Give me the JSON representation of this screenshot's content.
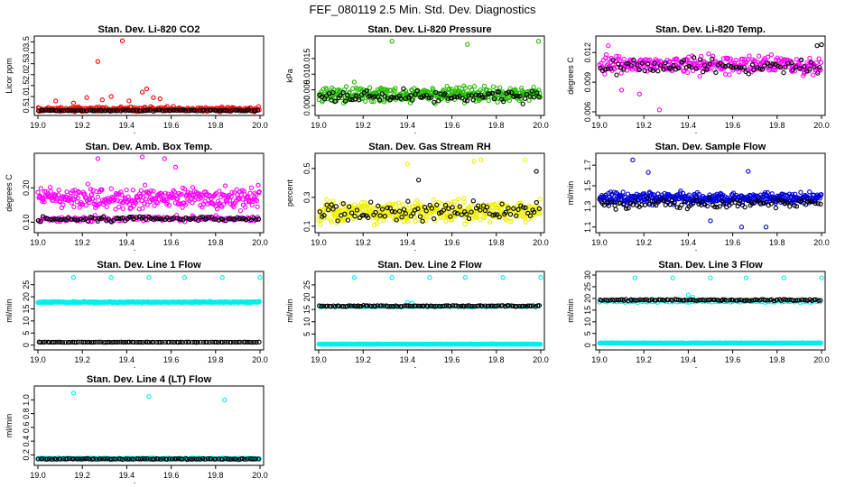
{
  "main_title": "FEF_080119  2.5 Min. Std. Dev. Diagnostics",
  "colors": {
    "black": "#000000",
    "red": "#ff0000",
    "green": "#22bb00",
    "magenta": "#ff00ff",
    "yellow": "#f0f000",
    "blue": "#0000dd",
    "cyan": "#00eeee"
  },
  "chart_data": [
    {
      "id": "co2",
      "type": "scatter",
      "title": "Stan. Dev. Li-820 CO2",
      "ylabel": "Licor ppm",
      "xlim": [
        19.0,
        20.0
      ],
      "ylim": [
        0.3,
        3.6
      ],
      "xticks": [
        "19.0",
        "19.2",
        "19.4",
        "19.6",
        "19.8",
        "20.0"
      ],
      "yticks": [
        "0.5",
        "1.0",
        "1.5",
        "2.0",
        "2.5",
        "3.0",
        "3.5"
      ],
      "series": [
        {
          "name": "primary",
          "color": "red",
          "n": 260,
          "base": 0.42,
          "noise": 0.16,
          "spikes": [
            [
              19.16,
              0.7
            ],
            [
              19.22,
              0.95
            ],
            [
              19.27,
              2.6
            ],
            [
              19.29,
              0.85
            ],
            [
              19.33,
              1.0
            ],
            [
              19.38,
              3.55
            ],
            [
              19.41,
              0.8
            ],
            [
              19.47,
              1.2
            ],
            [
              19.49,
              1.35
            ],
            [
              19.52,
              0.95
            ],
            [
              19.55,
              0.9
            ],
            [
              19.08,
              0.8
            ]
          ]
        },
        {
          "name": "secondary",
          "color": "black",
          "n": 95,
          "base": 0.36,
          "noise": 0.04,
          "spikes": []
        }
      ]
    },
    {
      "id": "pressure",
      "type": "scatter",
      "title": "Stan. Dev. Li-820 Pressure",
      "ylabel": "kPa",
      "xlim": [
        19.0,
        20.0
      ],
      "ylim": [
        -0.002,
        0.021
      ],
      "xticks": [
        "19.0",
        "19.2",
        "19.4",
        "19.6",
        "19.8",
        "20.0"
      ],
      "yticks": [
        "0.000",
        "0.005",
        "0.010",
        "0.015"
      ],
      "series": [
        {
          "name": "primary",
          "color": "green",
          "n": 340,
          "base": 0.0035,
          "noise": 0.0035,
          "spikes": [
            [
              19.33,
              0.0205
            ],
            [
              19.67,
              0.0195
            ],
            [
              19.99,
              0.0205
            ],
            [
              19.16,
              0.0075
            ]
          ]
        },
        {
          "name": "secondary",
          "color": "black",
          "n": 95,
          "base": 0.003,
          "noise": 0.003,
          "spikes": []
        }
      ]
    },
    {
      "id": "temp",
      "type": "scatter",
      "title": "Stan. Dev. Li-820 Temp.",
      "ylabel": "degrees C",
      "xlim": [
        19.0,
        20.0
      ],
      "ylim": [
        0.006,
        0.0133
      ],
      "xticks": [
        "19.0",
        "19.2",
        "19.4",
        "19.6",
        "19.8",
        "20.0"
      ],
      "yticks": [
        "0.006",
        "0.009",
        "0.012"
      ],
      "series": [
        {
          "name": "primary",
          "color": "magenta",
          "n": 300,
          "base": 0.0108,
          "noise": 0.0013,
          "spikes": [
            [
              19.27,
              0.0062
            ],
            [
              19.1,
              0.0082
            ],
            [
              19.18,
              0.0078
            ],
            [
              19.04,
              0.0127
            ]
          ]
        },
        {
          "name": "secondary",
          "color": "black",
          "n": 85,
          "base": 0.0106,
          "noise": 0.0011,
          "spikes": [
            [
              20.0,
              0.0128
            ],
            [
              19.98,
              0.0127
            ]
          ]
        }
      ]
    },
    {
      "id": "ambbox",
      "type": "scatter",
      "title": "Stan. Dev. Amb. Box Temp.",
      "ylabel": "degrees C",
      "xlim": [
        19.0,
        20.0
      ],
      "ylim": [
        0.08,
        0.29
      ],
      "xticks": [
        "19.0",
        "19.2",
        "19.4",
        "19.6",
        "19.8",
        "20.0"
      ],
      "yticks": [
        "0.10",
        "0.20"
      ],
      "series": [
        {
          "name": "primary",
          "color": "magenta",
          "n": 330,
          "base": 0.17,
          "noise": 0.045,
          "spikes": [
            [
              19.47,
              0.29
            ],
            [
              19.57,
              0.285
            ],
            [
              19.27,
              0.285
            ],
            [
              19.62,
              0.26
            ]
          ]
        },
        {
          "name": "low",
          "color": "magenta",
          "n": 140,
          "base": 0.11,
          "noise": 0.012,
          "spikes": []
        },
        {
          "name": "secondary",
          "color": "black",
          "n": 95,
          "base": 0.11,
          "noise": 0.01,
          "spikes": []
        }
      ]
    },
    {
      "id": "rh",
      "type": "scatter",
      "title": "Stan. Dev. Gas Stream RH",
      "ylabel": "percent",
      "xlim": [
        19.0,
        20.0
      ],
      "ylim": [
        0.08,
        0.58
      ],
      "xticks": [
        "19.0",
        "19.2",
        "19.4",
        "19.6",
        "19.8",
        "20.0"
      ],
      "yticks": [
        "0.1",
        "0.3",
        "0.5"
      ],
      "series": [
        {
          "name": "primary",
          "color": "yellow",
          "n": 420,
          "base": 0.2,
          "noise": 0.11,
          "spikes": [
            [
              19.73,
              0.56
            ],
            [
              19.93,
              0.56
            ],
            [
              19.4,
              0.53
            ],
            [
              19.7,
              0.55
            ]
          ]
        },
        {
          "name": "secondary",
          "color": "black",
          "n": 95,
          "base": 0.2,
          "noise": 0.09,
          "spikes": [
            [
              19.98,
              0.48
            ],
            [
              19.45,
              0.42
            ]
          ]
        }
      ]
    },
    {
      "id": "sampleflow",
      "type": "scatter",
      "title": "Stan. Dev. Sample Flow",
      "ylabel": "ml/min",
      "xlim": [
        19.0,
        20.0
      ],
      "ylim": [
        1.08,
        1.78
      ],
      "xticks": [
        "19.0",
        "19.2",
        "19.4",
        "19.6",
        "19.8",
        "20.0"
      ],
      "yticks": [
        "1.1",
        "1.3",
        "1.5",
        "1.7"
      ],
      "series": [
        {
          "name": "primary",
          "color": "blue",
          "n": 400,
          "base": 1.38,
          "noise": 0.08,
          "spikes": [
            [
              19.15,
              1.75
            ],
            [
              19.22,
              1.63
            ],
            [
              19.67,
              1.64
            ],
            [
              19.64,
              1.1
            ],
            [
              19.75,
              1.1
            ],
            [
              19.5,
              1.16
            ]
          ]
        },
        {
          "name": "secondary",
          "color": "black",
          "n": 95,
          "base": 1.33,
          "noise": 0.07,
          "spikes": []
        }
      ]
    },
    {
      "id": "line1",
      "type": "scatter",
      "title": "Stan. Dev. Line 1 Flow",
      "ylabel": "ml/min",
      "xlim": [
        19.0,
        20.0
      ],
      "ylim": [
        -0.5,
        29
      ],
      "xticks": [
        "19.0",
        "19.2",
        "19.4",
        "19.6",
        "19.8",
        "20.0"
      ],
      "yticks": [
        "0",
        "5",
        "10",
        "15",
        "20",
        "25"
      ],
      "series": [
        {
          "name": "primary",
          "color": "cyan",
          "n": 320,
          "base": 17.8,
          "noise": 0.35,
          "spikes": [
            [
              19.16,
              28
            ],
            [
              19.33,
              28
            ],
            [
              19.5,
              28
            ],
            [
              19.66,
              28
            ],
            [
              19.83,
              28
            ],
            [
              20.0,
              28
            ]
          ]
        },
        {
          "name": "secondary",
          "color": "black",
          "n": 100,
          "base": 1.2,
          "noise": 0.1,
          "spikes": []
        }
      ]
    },
    {
      "id": "line2",
      "type": "scatter",
      "title": "Stan. Dev. Line 2 Flow",
      "ylabel": "ml/min",
      "xlim": [
        19.0,
        20.0
      ],
      "ylim": [
        0,
        29
      ],
      "xticks": [
        "19.0",
        "19.2",
        "19.4",
        "19.6",
        "19.8",
        "20.0"
      ],
      "yticks": [
        "5",
        "10",
        "15",
        "20",
        "25"
      ],
      "series": [
        {
          "name": "primary",
          "color": "cyan",
          "n": 320,
          "base": 0.9,
          "noise": 0.12,
          "spikes": [
            [
              19.16,
              28
            ],
            [
              19.33,
              28
            ],
            [
              19.5,
              28
            ],
            [
              19.66,
              28
            ],
            [
              19.83,
              28
            ],
            [
              20.0,
              28
            ]
          ]
        },
        {
          "name": "upper",
          "color": "cyan",
          "n": 60,
          "base": 16.2,
          "noise": 0.4,
          "spikes": [
            [
              19.4,
              17.8
            ],
            [
              19.42,
              17.5
            ]
          ]
        },
        {
          "name": "secondary",
          "color": "black",
          "n": 110,
          "base": 16.4,
          "noise": 0.3,
          "spikes": []
        }
      ]
    },
    {
      "id": "line3",
      "type": "scatter",
      "title": "Stan. Dev. Line 3 Flow",
      "ylabel": "ml/min",
      "xlim": [
        19.0,
        20.0
      ],
      "ylim": [
        -0.5,
        30
      ],
      "xticks": [
        "19.0",
        "19.2",
        "19.4",
        "19.6",
        "19.8",
        "20.0"
      ],
      "yticks": [
        "0",
        "5",
        "10",
        "15",
        "20",
        "25",
        "30"
      ],
      "series": [
        {
          "name": "primary",
          "color": "cyan",
          "n": 320,
          "base": 0.9,
          "noise": 0.12,
          "spikes": [
            [
              19.16,
              28.8
            ],
            [
              19.33,
              28.8
            ],
            [
              19.5,
              28.8
            ],
            [
              19.66,
              28.8
            ],
            [
              19.83,
              28.8
            ],
            [
              20.0,
              28.8
            ]
          ]
        },
        {
          "name": "upper",
          "color": "cyan",
          "n": 70,
          "base": 18.6,
          "noise": 0.5,
          "spikes": [
            [
              19.4,
              21.5
            ],
            [
              19.42,
              20.5
            ]
          ]
        },
        {
          "name": "secondary",
          "color": "black",
          "n": 110,
          "base": 19.3,
          "noise": 0.4,
          "spikes": []
        }
      ]
    },
    {
      "id": "line4",
      "type": "scatter",
      "title": "Stan. Dev. Line 4 (LT) Flow",
      "ylabel": "ml/min",
      "xlim": [
        19.0,
        20.0
      ],
      "ylim": [
        0.1,
        1.15
      ],
      "xticks": [
        "19.0",
        "19.2",
        "19.4",
        "19.6",
        "19.8",
        "20.0"
      ],
      "yticks": [
        "0.2",
        "0.4",
        "0.6",
        "0.8",
        "1.0"
      ],
      "series": [
        {
          "name": "primary",
          "color": "cyan",
          "n": 320,
          "base": 0.145,
          "noise": 0.012,
          "spikes": [
            [
              19.16,
              1.1
            ],
            [
              19.5,
              1.05
            ],
            [
              19.84,
              1.0
            ]
          ]
        },
        {
          "name": "secondary",
          "color": "black",
          "n": 100,
          "base": 0.14,
          "noise": 0.01,
          "spikes": []
        }
      ]
    }
  ]
}
